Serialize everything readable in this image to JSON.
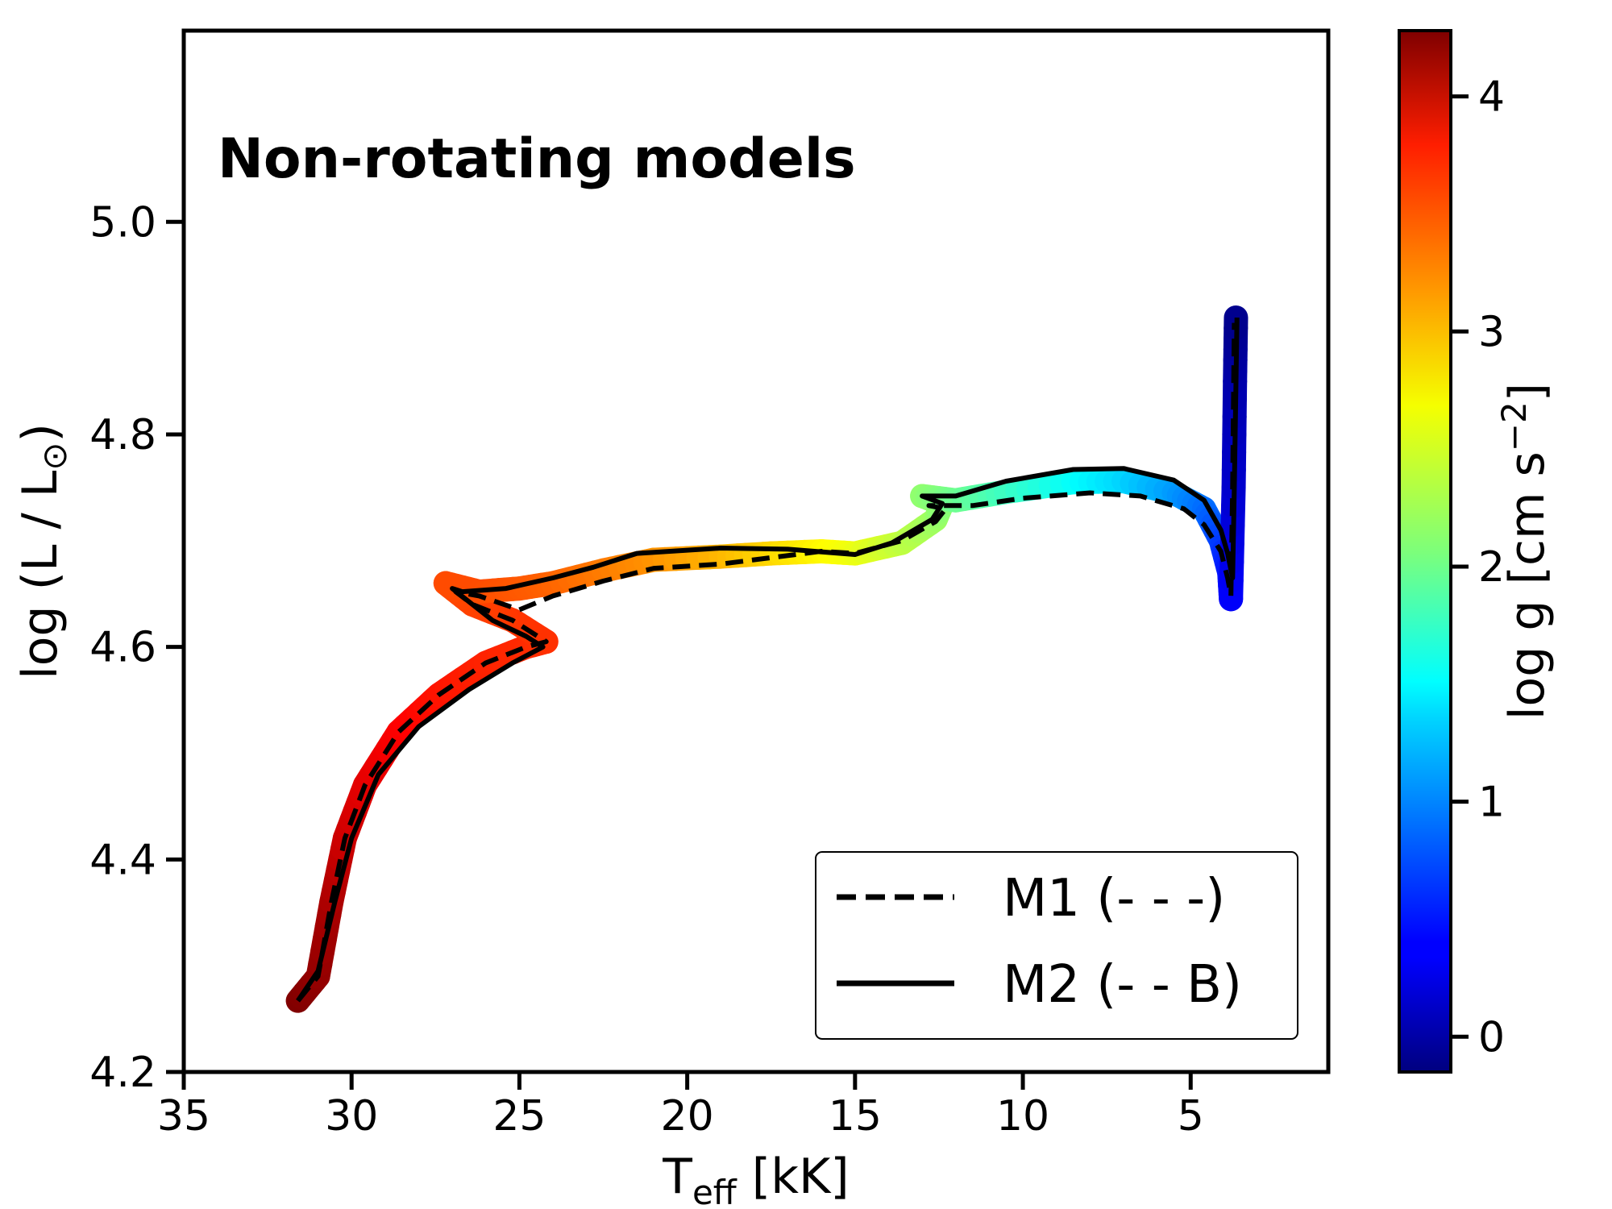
{
  "chart_data": {
    "type": "line",
    "annotation": "Non-rotating models",
    "xlabel": {
      "main": "T",
      "sub": "eff",
      "rest": " [kK]"
    },
    "ylabel": {
      "main": "log (L / L",
      "sun": "⊙",
      "rest": ")"
    },
    "xlim": [
      35.0,
      0.9
    ],
    "ylim": [
      4.2,
      5.18
    ],
    "xticks": [
      35,
      30,
      25,
      20,
      15,
      10,
      5
    ],
    "xtick_labels": [
      "35",
      "30",
      "25",
      "20",
      "15",
      "10",
      "5"
    ],
    "yticks": [
      4.2,
      4.4,
      4.6,
      4.8,
      5.0
    ],
    "ytick_labels": [
      "4.2",
      "4.4",
      "4.6",
      "4.8",
      "5.0"
    ],
    "colorbar": {
      "label": "log g [cm s",
      "label_sup": "−2",
      "label_end": "]",
      "range": [
        -0.15,
        4.28
      ],
      "ticks": [
        0,
        1,
        2,
        3,
        4
      ],
      "tick_labels": [
        "0",
        "1",
        "2",
        "3",
        "4"
      ],
      "colormap": "jet"
    },
    "legend": {
      "position": "lower-right",
      "entries": [
        {
          "label": "M1 (- - -)",
          "style": "dashed"
        },
        {
          "label": "M2 (- - B)",
          "style": "solid"
        }
      ]
    },
    "series": [
      {
        "name": "M1 (- - -)",
        "style": "dashed",
        "points": [
          [
            31.6,
            4.267
          ],
          [
            31.0,
            4.29
          ],
          [
            30.6,
            4.36
          ],
          [
            30.2,
            4.42
          ],
          [
            29.6,
            4.47
          ],
          [
            28.6,
            4.52
          ],
          [
            27.4,
            4.555
          ],
          [
            26.0,
            4.585
          ],
          [
            24.8,
            4.6
          ],
          [
            24.2,
            4.605
          ],
          [
            25.2,
            4.625
          ],
          [
            26.4,
            4.64
          ],
          [
            26.9,
            4.652
          ],
          [
            26.2,
            4.648
          ],
          [
            25.0,
            4.635
          ],
          [
            24.0,
            4.648
          ],
          [
            22.5,
            4.662
          ],
          [
            21.0,
            4.674
          ],
          [
            19.0,
            4.678
          ],
          [
            17.5,
            4.684
          ],
          [
            16.0,
            4.69
          ],
          [
            15.0,
            4.688
          ],
          [
            13.6,
            4.7
          ],
          [
            12.6,
            4.718
          ],
          [
            12.3,
            4.73
          ],
          [
            12.8,
            4.733
          ],
          [
            11.5,
            4.733
          ],
          [
            10.0,
            4.74
          ],
          [
            8.0,
            4.745
          ],
          [
            6.5,
            4.742
          ],
          [
            5.2,
            4.73
          ],
          [
            4.6,
            4.715
          ],
          [
            4.1,
            4.69
          ],
          [
            3.9,
            4.665
          ],
          [
            3.8,
            4.648
          ],
          [
            3.75,
            4.75
          ],
          [
            3.72,
            4.85
          ],
          [
            3.7,
            4.905
          ]
        ]
      },
      {
        "name": "M2 (- - B)",
        "style": "solid",
        "points": [
          [
            31.6,
            4.267
          ],
          [
            31.0,
            4.295
          ],
          [
            30.5,
            4.36
          ],
          [
            30.0,
            4.42
          ],
          [
            29.2,
            4.48
          ],
          [
            28.0,
            4.525
          ],
          [
            26.5,
            4.56
          ],
          [
            25.2,
            4.585
          ],
          [
            24.3,
            4.6
          ],
          [
            24.8,
            4.61
          ],
          [
            25.8,
            4.625
          ],
          [
            27.0,
            4.655
          ],
          [
            26.7,
            4.652
          ],
          [
            25.4,
            4.655
          ],
          [
            24.0,
            4.665
          ],
          [
            22.8,
            4.675
          ],
          [
            21.5,
            4.688
          ],
          [
            19.0,
            4.693
          ],
          [
            17.0,
            4.692
          ],
          [
            15.0,
            4.687
          ],
          [
            13.9,
            4.698
          ],
          [
            12.7,
            4.72
          ],
          [
            12.4,
            4.735
          ],
          [
            13.0,
            4.742
          ],
          [
            12.0,
            4.742
          ],
          [
            10.5,
            4.756
          ],
          [
            8.5,
            4.767
          ],
          [
            7.0,
            4.768
          ],
          [
            5.5,
            4.757
          ],
          [
            4.6,
            4.738
          ],
          [
            4.1,
            4.71
          ],
          [
            3.9,
            4.688
          ],
          [
            3.75,
            4.665
          ],
          [
            3.7,
            4.75
          ],
          [
            3.65,
            4.85
          ],
          [
            3.62,
            4.91
          ]
        ]
      }
    ],
    "logg_track": [
      [
        31.6,
        4.267,
        4.28
      ],
      [
        31.0,
        4.29,
        4.2
      ],
      [
        30.6,
        4.36,
        4.1
      ],
      [
        30.2,
        4.42,
        3.95
      ],
      [
        29.6,
        4.47,
        3.85
      ],
      [
        28.6,
        4.52,
        3.75
      ],
      [
        27.4,
        4.555,
        3.65
      ],
      [
        26.0,
        4.585,
        3.58
      ],
      [
        24.8,
        4.6,
        3.55
      ],
      [
        24.2,
        4.605,
        3.52
      ],
      [
        25.2,
        4.625,
        3.5
      ],
      [
        26.4,
        4.64,
        3.45
      ],
      [
        27.2,
        4.66,
        3.4
      ],
      [
        26.2,
        4.652,
        3.4
      ],
      [
        25.0,
        4.655,
        3.35
      ],
      [
        24.0,
        4.66,
        3.3
      ],
      [
        22.5,
        4.672,
        3.2
      ],
      [
        21.0,
        4.682,
        3.1
      ],
      [
        19.0,
        4.685,
        2.95
      ],
      [
        17.5,
        4.688,
        2.8
      ],
      [
        16.0,
        4.69,
        2.65
      ],
      [
        15.0,
        4.688,
        2.55
      ],
      [
        13.6,
        4.698,
        2.35
      ],
      [
        12.6,
        4.72,
        2.2
      ],
      [
        12.4,
        4.735,
        2.1
      ],
      [
        13.0,
        4.742,
        2.15
      ],
      [
        12.0,
        4.738,
        2.0
      ],
      [
        10.5,
        4.746,
        1.8
      ],
      [
        8.5,
        4.755,
        1.55
      ],
      [
        7.0,
        4.756,
        1.35
      ],
      [
        5.5,
        4.745,
        1.1
      ],
      [
        4.6,
        4.73,
        0.9
      ],
      [
        4.1,
        4.7,
        0.7
      ],
      [
        3.85,
        4.67,
        0.5
      ],
      [
        3.8,
        4.645,
        0.4
      ],
      [
        3.72,
        4.75,
        0.2
      ],
      [
        3.68,
        4.85,
        0.05
      ],
      [
        3.65,
        4.91,
        -0.1
      ]
    ]
  }
}
